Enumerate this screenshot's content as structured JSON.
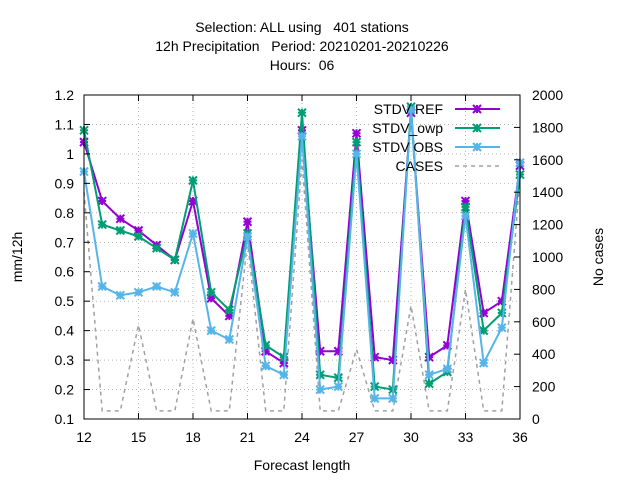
{
  "chart_data": {
    "type": "line",
    "title_lines": [
      "Selection: ALL using   401 stations",
      "12h Precipitation   Period: 20210201-20210226",
      "Hours:  06"
    ],
    "xlabel": "Forecast length",
    "ylabel": "mm/12h",
    "y2label": "No cases",
    "xlim": [
      12,
      36
    ],
    "ylim": [
      0.1,
      1.2
    ],
    "y2lim": [
      0,
      2000
    ],
    "x_ticks": [
      12,
      15,
      18,
      21,
      24,
      27,
      30,
      33,
      36
    ],
    "y_ticks": [
      "0.1",
      "0.2",
      "0.3",
      "0.4",
      "0.5",
      "0.6",
      "0.7",
      "0.8",
      "0.9",
      "1",
      "1.1",
      "1.2"
    ],
    "y2_ticks": [
      0,
      200,
      400,
      600,
      800,
      1000,
      1200,
      1400,
      1600,
      1800,
      2000
    ],
    "grid": true,
    "legend_position": "top-right",
    "x": [
      12,
      13,
      14,
      15,
      16,
      17,
      18,
      19,
      20,
      21,
      22,
      23,
      24,
      25,
      26,
      27,
      28,
      29,
      30,
      31,
      32,
      33,
      34,
      35,
      36
    ],
    "series": [
      {
        "name": "STDV REF",
        "color": "#9400d3",
        "marker": "x-star",
        "axis": "y",
        "values": [
          1.04,
          0.84,
          0.78,
          0.74,
          0.69,
          0.64,
          0.84,
          0.51,
          0.45,
          0.77,
          0.33,
          0.29,
          1.08,
          0.33,
          0.33,
          1.07,
          0.31,
          0.3,
          1.14,
          0.31,
          0.35,
          0.84,
          0.46,
          0.5,
          0.96
        ]
      },
      {
        "name": "STDV_owp",
        "color": "#009e73",
        "marker": "x-star",
        "axis": "y",
        "values": [
          1.08,
          0.76,
          0.74,
          0.72,
          0.68,
          0.64,
          0.91,
          0.53,
          0.47,
          0.73,
          0.35,
          0.31,
          1.14,
          0.25,
          0.24,
          1.04,
          0.21,
          0.2,
          1.16,
          0.22,
          0.26,
          0.82,
          0.4,
          0.46,
          0.93
        ]
      },
      {
        "name": "STDV OBS",
        "color": "#56b4e9",
        "marker": "x-star",
        "axis": "y",
        "values": [
          0.94,
          0.55,
          0.52,
          0.53,
          0.55,
          0.53,
          0.73,
          0.4,
          0.37,
          0.72,
          0.28,
          0.25,
          1.06,
          0.2,
          0.21,
          1.0,
          0.17,
          0.17,
          1.15,
          0.25,
          0.27,
          0.79,
          0.29,
          0.41,
          0.97
        ]
      },
      {
        "name": "CASES",
        "color": "#a0a0a0",
        "marker": "none",
        "dashed": true,
        "axis": "y2",
        "values": [
          1400,
          50,
          50,
          580,
          50,
          50,
          620,
          50,
          50,
          1100,
          50,
          50,
          1600,
          50,
          50,
          430,
          50,
          50,
          700,
          50,
          50,
          800,
          50,
          50,
          1500
        ]
      }
    ]
  }
}
